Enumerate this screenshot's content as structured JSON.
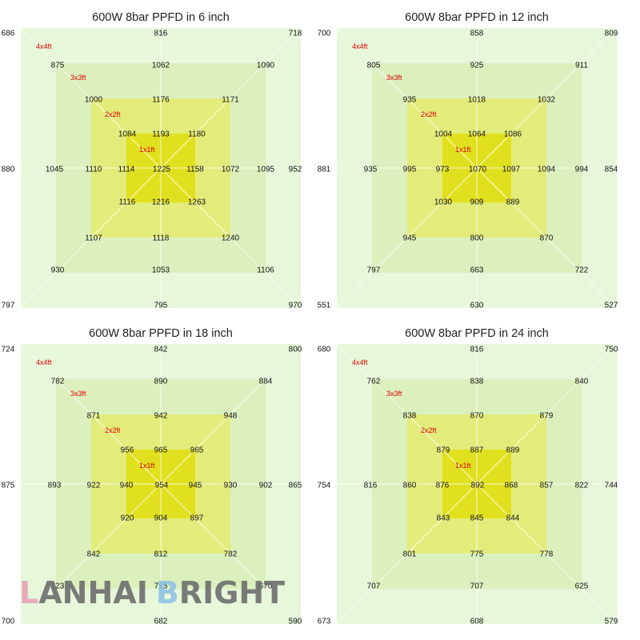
{
  "chart_data": [
    {
      "type": "heatmap",
      "title": "600W 8bar PPFD in 6 inch",
      "zone_labels": [
        "4x4ft",
        "3x3ft",
        "2x2ft",
        "1x1ft"
      ],
      "grid": [
        [
          686,
          null,
          null,
          816,
          null,
          null,
          718
        ],
        [
          null,
          875,
          null,
          1062,
          null,
          1090,
          null
        ],
        [
          null,
          null,
          1000,
          1176,
          1171,
          null,
          null
        ],
        [
          null,
          null,
          1084,
          1193,
          1180,
          null,
          null
        ],
        [
          880,
          1045,
          1110,
          1114,
          1225,
          1158,
          1072,
          1095,
          952
        ],
        [
          null,
          null,
          1116,
          1216,
          1263,
          null,
          null
        ],
        [
          null,
          null,
          1107,
          1118,
          1240,
          null,
          null
        ],
        [
          null,
          930,
          null,
          1053,
          null,
          1106,
          null
        ],
        [
          797,
          null,
          null,
          795,
          null,
          null,
          970
        ]
      ],
      "points": {
        "c4": [
          686,
          718,
          970,
          797
        ],
        "m4": [
          816,
          952,
          795,
          880
        ],
        "c3": [
          875,
          1090,
          1106,
          930
        ],
        "m3": [
          1062,
          1095,
          1053,
          1045
        ],
        "c2": [
          1000,
          1171,
          1240,
          1107
        ],
        "m2": [
          1176,
          1072,
          1118,
          1110
        ],
        "c1": [
          1084,
          1180,
          1263,
          1116
        ],
        "m1": [
          1193,
          1158,
          1216,
          1114
        ],
        "center": 1225
      }
    },
    {
      "type": "heatmap",
      "title": "600W 8bar PPFD in 12 inch",
      "zone_labels": [
        "4x4ft",
        "3x3ft",
        "2x2ft",
        "1x1ft"
      ],
      "points": {
        "c4": [
          700,
          809,
          527,
          551
        ],
        "m4": [
          858,
          854,
          630,
          881
        ],
        "c3": [
          805,
          911,
          722,
          797
        ],
        "m3": [
          925,
          994,
          663,
          935
        ],
        "c2": [
          935,
          1032,
          870,
          945
        ],
        "m2": [
          1018,
          1094,
          800,
          995
        ],
        "c1": [
          1004,
          1086,
          889,
          1030
        ],
        "m1": [
          1064,
          1097,
          909,
          973
        ],
        "center": 1070
      }
    },
    {
      "type": "heatmap",
      "title": "600W 8bar PPFD in 18 inch",
      "zone_labels": [
        "4x4ft",
        "3x3ft",
        "2x2ft",
        "1x1ft"
      ],
      "points": {
        "c4": [
          724,
          800,
          590,
          700
        ],
        "m4": [
          842,
          865,
          682,
          875
        ],
        "c3": [
          782,
          884,
          670,
          723
        ],
        "m3": [
          890,
          902,
          715,
          893
        ],
        "c2": [
          871,
          948,
          782,
          842
        ],
        "m2": [
          942,
          930,
          812,
          922
        ],
        "c1": [
          956,
          965,
          897,
          920
        ],
        "m1": [
          965,
          945,
          904,
          940
        ],
        "center": 954
      }
    },
    {
      "type": "heatmap",
      "title": "600W 8bar PPFD in 24 inch",
      "zone_labels": [
        "4x4ft",
        "3x3ft",
        "2x2ft",
        "1x1ft"
      ],
      "points": {
        "c4": [
          680,
          750,
          579,
          673
        ],
        "m4": [
          816,
          744,
          608,
          754
        ],
        "c3": [
          762,
          840,
          625,
          707
        ],
        "m3": [
          838,
          822,
          707,
          816
        ],
        "c2": [
          838,
          879,
          778,
          801
        ],
        "m2": [
          870,
          857,
          775,
          860
        ],
        "c1": [
          879,
          889,
          844,
          843
        ],
        "m1": [
          887,
          868,
          845,
          876
        ],
        "center": 892
      }
    }
  ],
  "watermark": {
    "letters": [
      "L",
      "A",
      "N",
      "H",
      "A",
      "I",
      " ",
      "B",
      "R",
      "I",
      "G",
      "H",
      "T"
    ],
    "colors": [
      "#e8a2b6",
      "#6e6e6e",
      "#6e6e6e",
      "#6e6e6e",
      "#6e6e6e",
      "#6e6e6e",
      "#6e6e6e",
      "#8fc2e6",
      "#6e6e6e",
      "#6e6e6e",
      "#6e6e6e",
      "#6e6e6e",
      "#6e6e6e"
    ]
  },
  "colors": {
    "zone4": "#e6f7da",
    "zone3": "#dcf0bd",
    "zone2": "#e3ec7a",
    "zone1": "#e1e01f",
    "diagonal": "#ffffff",
    "zone_label": "#e00000"
  }
}
